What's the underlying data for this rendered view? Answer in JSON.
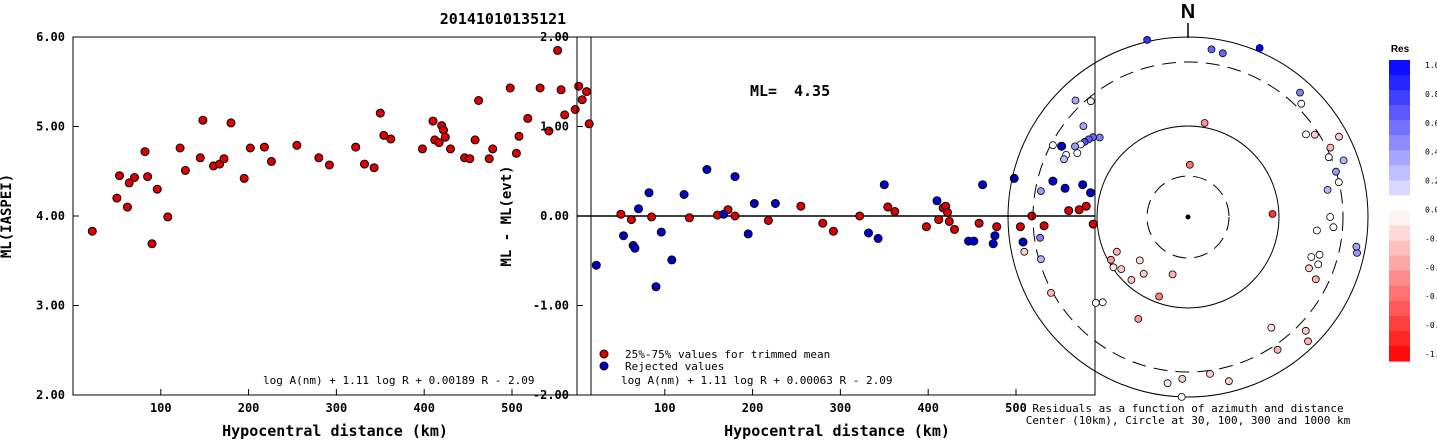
{
  "title": "20141010135121",
  "chart_data": [
    {
      "type": "scatter",
      "ylabel": "ML(IASPEI)",
      "xlabel": "Hypocentral distance (km)",
      "xticks": [
        "100",
        "200",
        "300",
        "400",
        "500"
      ],
      "yticks": [
        "2.00",
        "3.00",
        "4.00",
        "5.00",
        "6.00"
      ],
      "xlim": [
        0,
        590
      ],
      "ylim": [
        2.0,
        6.0
      ],
      "formula": "log A(nm) + 1.11 log R + 0.00189 R - 2.09",
      "marker_color": "#dd0000",
      "points": [
        [
          22,
          3.83
        ],
        [
          50,
          4.2
        ],
        [
          53,
          4.45
        ],
        [
          62,
          4.1
        ],
        [
          64,
          4.37
        ],
        [
          70,
          4.43
        ],
        [
          82,
          4.72
        ],
        [
          85,
          4.44
        ],
        [
          90,
          3.69
        ],
        [
          96,
          4.3
        ],
        [
          108,
          3.99
        ],
        [
          122,
          4.76
        ],
        [
          128,
          4.51
        ],
        [
          145,
          4.65
        ],
        [
          148,
          5.07
        ],
        [
          160,
          4.56
        ],
        [
          167,
          4.58
        ],
        [
          172,
          4.64
        ],
        [
          180,
          5.04
        ],
        [
          195,
          4.42
        ],
        [
          202,
          4.76
        ],
        [
          218,
          4.77
        ],
        [
          226,
          4.61
        ],
        [
          255,
          4.79
        ],
        [
          280,
          4.65
        ],
        [
          292,
          4.57
        ],
        [
          322,
          4.77
        ],
        [
          332,
          4.58
        ],
        [
          343,
          4.54
        ],
        [
          350,
          5.15
        ],
        [
          354,
          4.9
        ],
        [
          362,
          4.86
        ],
        [
          398,
          4.75
        ],
        [
          410,
          5.06
        ],
        [
          412,
          4.85
        ],
        [
          417,
          4.82
        ],
        [
          420,
          5.01
        ],
        [
          422,
          4.96
        ],
        [
          424,
          4.88
        ],
        [
          430,
          4.75
        ],
        [
          446,
          4.65
        ],
        [
          452,
          4.64
        ],
        [
          458,
          4.85
        ],
        [
          462,
          5.29
        ],
        [
          474,
          4.64
        ],
        [
          478,
          4.75
        ],
        [
          498,
          5.43
        ],
        [
          505,
          4.7
        ],
        [
          508,
          4.89
        ],
        [
          518,
          5.09
        ],
        [
          532,
          5.43
        ],
        [
          542,
          4.95
        ],
        [
          552,
          5.85
        ],
        [
          556,
          5.41
        ],
        [
          560,
          5.13
        ],
        [
          572,
          5.19
        ],
        [
          576,
          5.45
        ],
        [
          580,
          5.3
        ],
        [
          585,
          5.39
        ],
        [
          588,
          5.03
        ]
      ]
    },
    {
      "type": "scatter",
      "ylabel": "ML - ML(evt)",
      "xlabel": "Hypocentral distance (km)",
      "xticks": [
        "100",
        "200",
        "300",
        "400",
        "500"
      ],
      "yticks": [
        "-2.00",
        "-1.00",
        "0.00",
        "1.00",
        "2.00"
      ],
      "xlim": [
        0,
        590
      ],
      "ylim": [
        -2.0,
        2.0
      ],
      "ml_label": "ML=",
      "ml_value": "4.35",
      "legend": [
        {
          "label": "25%-75% values for trimmed mean",
          "color": "#dd0000"
        },
        {
          "label": "Rejected values",
          "color": "#0000cc"
        }
      ],
      "formula": "log A(nm) + 1.11 log R + 0.00063 R - 2.09",
      "series": [
        {
          "name": "25%-75% values for trimmed mean",
          "color": "#dd0000",
          "points": [
            [
              50,
              0.02
            ],
            [
              62,
              -0.04
            ],
            [
              85,
              -0.01
            ],
            [
              128,
              -0.02
            ],
            [
              160,
              0.01
            ],
            [
              172,
              0.07
            ],
            [
              180,
              0.0
            ],
            [
              218,
              -0.05
            ],
            [
              255,
              0.11
            ],
            [
              280,
              -0.08
            ],
            [
              292,
              -0.17
            ],
            [
              322,
              0.0
            ],
            [
              354,
              0.1
            ],
            [
              362,
              0.05
            ],
            [
              398,
              -0.12
            ],
            [
              412,
              -0.04
            ],
            [
              417,
              0.09
            ],
            [
              420,
              0.11
            ],
            [
              422,
              0.04
            ],
            [
              424,
              -0.06
            ],
            [
              430,
              -0.15
            ],
            [
              458,
              -0.08
            ],
            [
              478,
              -0.12
            ],
            [
              505,
              -0.12
            ],
            [
              518,
              0.0
            ],
            [
              532,
              -0.11
            ],
            [
              560,
              0.06
            ],
            [
              572,
              0.07
            ],
            [
              580,
              0.11
            ],
            [
              588,
              -0.09
            ]
          ]
        },
        {
          "name": "Rejected values",
          "color": "#0000cc",
          "points": [
            [
              22,
              -0.55
            ],
            [
              53,
              -0.22
            ],
            [
              64,
              -0.33
            ],
            [
              66,
              -0.36
            ],
            [
              70,
              0.08
            ],
            [
              82,
              0.26
            ],
            [
              90,
              -0.79
            ],
            [
              96,
              -0.18
            ],
            [
              108,
              -0.49
            ],
            [
              122,
              0.24
            ],
            [
              148,
              0.52
            ],
            [
              167,
              0.02
            ],
            [
              180,
              0.44
            ],
            [
              195,
              -0.2
            ],
            [
              202,
              0.14
            ],
            [
              226,
              0.14
            ],
            [
              332,
              -0.19
            ],
            [
              343,
              -0.25
            ],
            [
              350,
              0.35
            ],
            [
              410,
              0.17
            ],
            [
              446,
              -0.28
            ],
            [
              452,
              -0.28
            ],
            [
              462,
              0.35
            ],
            [
              474,
              -0.31
            ],
            [
              476,
              -0.22
            ],
            [
              498,
              0.42
            ],
            [
              508,
              -0.29
            ],
            [
              542,
              0.39
            ],
            [
              552,
              0.78
            ],
            [
              556,
              0.31
            ],
            [
              576,
              0.35
            ],
            [
              585,
              0.26
            ]
          ]
        }
      ]
    },
    {
      "type": "polar-scatter",
      "north_label": "N",
      "caption_line1": "Residuals as a function of azimuth and distance",
      "caption_line2": "Center (10km), Circle at 30, 100, 300 and 1000 km",
      "colorbar_title": "Res",
      "colorbar_ticks": [
        "1.0",
        "0.8",
        "0.6",
        "0.4",
        "0.2",
        "0.0",
        "-0.2",
        "-0.4",
        "-0.6",
        "-0.8",
        "-1.0"
      ],
      "rings_km": [
        30,
        100,
        300,
        1000
      ],
      "ring_styles": [
        "dashed",
        "solid",
        "dashed",
        "solid"
      ],
      "points": [
        {
          "az": 2,
          "r": 0.29,
          "res": -0.55
        },
        {
          "az": 88,
          "r": 0.47,
          "res": -0.8
        },
        {
          "az": 195,
          "r": 0.33,
          "res": -0.3
        },
        {
          "az": 200,
          "r": 0.47,
          "res": -0.5
        },
        {
          "az": 218,
          "r": 0.4,
          "res": -0.2
        },
        {
          "az": 222,
          "r": 0.47,
          "res": -0.25
        },
        {
          "az": 228,
          "r": 0.36,
          "res": -0.15
        },
        {
          "az": 232,
          "r": 0.47,
          "res": -0.2
        },
        {
          "az": 236,
          "r": 0.5,
          "res": -0.1
        },
        {
          "az": 241,
          "r": 0.49,
          "res": -0.4
        },
        {
          "az": 244,
          "r": 0.44,
          "res": -0.3
        },
        {
          "az": 206,
          "r": 0.63,
          "res": -0.4
        },
        {
          "az": 225,
          "r": 0.67,
          "res": 0.0
        },
        {
          "az": 227,
          "r": 0.7,
          "res": 0.0
        },
        {
          "az": 241,
          "r": 0.87,
          "res": -0.3
        },
        {
          "az": 254,
          "r": 0.85,
          "res": 0.3
        },
        {
          "az": 258,
          "r": 0.93,
          "res": -0.2
        },
        {
          "az": 187,
          "r": 0.93,
          "res": -0.1
        },
        {
          "az": 182,
          "r": 1.0,
          "res": 0.0
        },
        {
          "az": 182,
          "r": 0.9,
          "res": -0.2
        },
        {
          "az": 172,
          "r": 0.88,
          "res": -0.2
        },
        {
          "az": 166,
          "r": 0.94,
          "res": -0.2
        },
        {
          "az": 146,
          "r": 0.89,
          "res": -0.3
        },
        {
          "az": 143,
          "r": 0.77,
          "res": -0.1
        },
        {
          "az": 136,
          "r": 0.96,
          "res": -0.3
        },
        {
          "az": 134,
          "r": 0.91,
          "res": -0.2
        },
        {
          "az": 116,
          "r": 0.79,
          "res": -0.3
        },
        {
          "az": 113,
          "r": 0.73,
          "res": -0.2
        },
        {
          "az": 110,
          "r": 0.77,
          "res": 0.0
        },
        {
          "az": 108,
          "r": 0.72,
          "res": 0.0
        },
        {
          "az": 106,
          "r": 0.76,
          "res": 0.0
        },
        {
          "az": 102,
          "r": 0.96,
          "res": 0.4
        },
        {
          "az": 100,
          "r": 0.95,
          "res": 0.35
        },
        {
          "az": 96,
          "r": 0.72,
          "res": 0.0
        },
        {
          "az": 94,
          "r": 0.81,
          "res": 0.0
        },
        {
          "az": 90,
          "r": 0.79,
          "res": 0.0
        },
        {
          "az": 79,
          "r": 0.79,
          "res": 0.3
        },
        {
          "az": 77,
          "r": 0.86,
          "res": 0.0
        },
        {
          "az": 73,
          "r": 0.86,
          "res": 0.4
        },
        {
          "az": 70,
          "r": 0.92,
          "res": 0.3
        },
        {
          "az": 67,
          "r": 0.85,
          "res": 0.0
        },
        {
          "az": 64,
          "r": 0.88,
          "res": -0.3
        },
        {
          "az": 62,
          "r": 0.95,
          "res": -0.2
        },
        {
          "az": 57,
          "r": 0.84,
          "res": -0.2
        },
        {
          "az": 55,
          "r": 0.8,
          "res": 0.0
        },
        {
          "az": 45,
          "r": 0.89,
          "res": 0.0
        },
        {
          "az": 42,
          "r": 0.93,
          "res": 0.5
        },
        {
          "az": 23,
          "r": 1.02,
          "res": 1.0
        },
        {
          "az": 12,
          "r": 0.93,
          "res": 0.6
        },
        {
          "az": 8,
          "r": 0.94,
          "res": 0.6
        },
        {
          "az": 10,
          "r": 0.53,
          "res": -0.45
        },
        {
          "az": 347,
          "r": 1.01,
          "res": 0.8
        },
        {
          "az": 316,
          "r": 0.9,
          "res": 0.35
        },
        {
          "az": 320,
          "r": 0.84,
          "res": 0.0
        },
        {
          "az": 311,
          "r": 0.77,
          "res": 0.35
        },
        {
          "az": 312,
          "r": 0.66,
          "res": 0.5
        },
        {
          "az": 310,
          "r": 0.69,
          "res": 0.6
        },
        {
          "az": 308,
          "r": 0.7,
          "res": 0.6
        },
        {
          "az": 306,
          "r": 0.71,
          "res": 0.7
        },
        {
          "az": 304,
          "r": 0.72,
          "res": 0.0
        },
        {
          "az": 302,
          "r": 0.74,
          "res": 0.4
        },
        {
          "az": 300,
          "r": 0.71,
          "res": 0.0
        },
        {
          "az": 297,
          "r": 0.76,
          "res": 0.0
        },
        {
          "az": 298,
          "r": 0.85,
          "res": 0.0
        },
        {
          "az": 280,
          "r": 0.83,
          "res": 0.4
        },
        {
          "az": 262,
          "r": 0.83,
          "res": 0.5
        },
        {
          "az": 295,
          "r": 0.76,
          "res": 0.25
        }
      ]
    }
  ]
}
